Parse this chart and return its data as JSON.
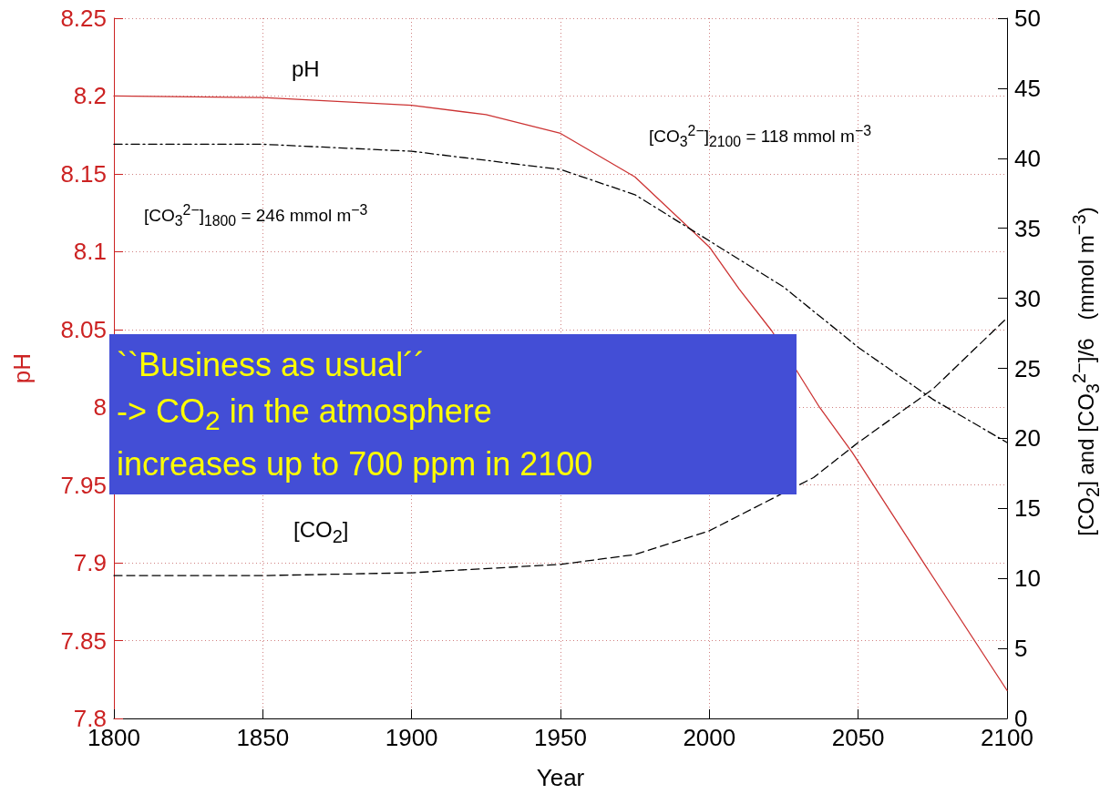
{
  "chart_data": {
    "type": "line",
    "xlabel": "Year",
    "ylabel": "pH",
    "y2label": "[CO$_{2}$] and [CO$_{3}$$^{2−}$]/6   (mmol m$^{−3}$)",
    "xlim": [
      1800,
      2100
    ],
    "xticks": [
      1800,
      1850,
      1900,
      1950,
      2000,
      2050,
      2100
    ],
    "ylim": [
      7.8,
      8.25
    ],
    "yticks": [
      7.8,
      7.85,
      7.9,
      7.95,
      8,
      8.05,
      8.1,
      8.15,
      8.2,
      8.25
    ],
    "y2lim": [
      0,
      50
    ],
    "y2ticks": [
      0,
      5,
      10,
      15,
      20,
      25,
      30,
      35,
      40,
      45,
      50
    ],
    "grid": true,
    "marker": "none",
    "series": [
      {
        "color": "#cc3333",
        "line_style": "solid",
        "x": [
          1800,
          1850,
          1900,
          1925,
          1950,
          1975,
          2000,
          2010,
          2021,
          2037,
          2048,
          2072,
          2100
        ],
        "values": [
          8.2,
          8.199,
          8.194,
          8.188,
          8.176,
          8.148,
          8.103,
          8.076,
          8.049,
          8.0,
          7.971,
          7.9,
          7.818
        ]
      },
      {
        "color": "#000000",
        "line_style": "dashdot",
        "axis": "y2",
        "x": [
          1800,
          1850,
          1900,
          1950,
          1975,
          2000,
          2025,
          2050,
          2075,
          2100
        ],
        "values": [
          41.0,
          41.0,
          40.5,
          39.2,
          37.4,
          34.1,
          30.8,
          26.5,
          22.8,
          19.7
        ]
      },
      {
        "color": "#000000",
        "line_style": "dashed",
        "axis": "y2",
        "x": [
          1800,
          1850,
          1900,
          1950,
          1975,
          2000,
          2035,
          2050,
          2075,
          2100
        ],
        "values": [
          10.2,
          10.2,
          10.4,
          11.0,
          11.7,
          13.4,
          17.2,
          19.7,
          23.5,
          28.6
        ]
      }
    ],
    "annotations": [
      "pH",
      "[CO$_{3}$$^{2−}$]$_{1800}$ = 246 mmol m$^{−3}$",
      "[CO$_{3}$$^{2−}$]$_{2100}$ = 118 mmol m$^{−3}$",
      "[CO$_{2}$]",
      "``Business as usual´´\n-> CO$_{2}$ in the atmosphere\nincreases up to 700 ppm in 2100"
    ]
  }
}
